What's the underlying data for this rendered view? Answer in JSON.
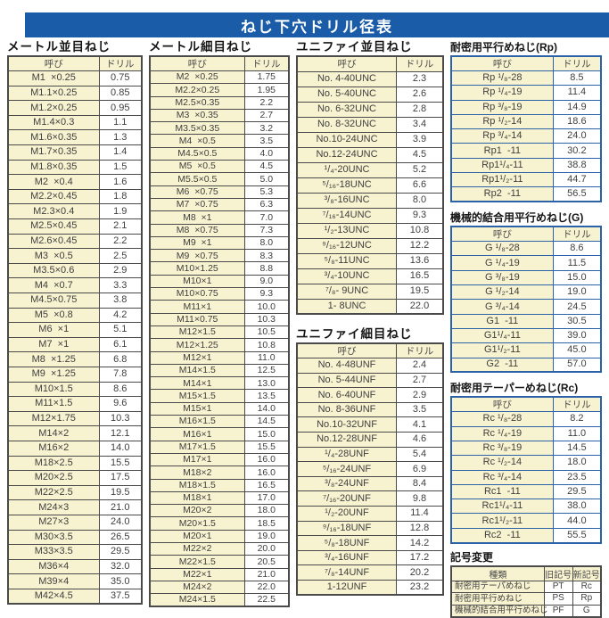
{
  "page_title": "ねじ下穴ドリル径表",
  "col_headers": {
    "name": "呼び",
    "drill": "ドリル"
  },
  "tables": {
    "metric_coarse": {
      "title": "メートル並目ねじ",
      "rows": [
        [
          "M1  ×0.25",
          "0.75"
        ],
        [
          "M1.1×0.25",
          "0.85"
        ],
        [
          "M1.2×0.25",
          "0.95"
        ],
        [
          "M1.4×0.3",
          "1.1"
        ],
        [
          "M1.6×0.35",
          "1.3"
        ],
        [
          "M1.7×0.35",
          "1.4"
        ],
        [
          "M1.8×0.35",
          "1.5"
        ],
        [
          "M2  ×0.4",
          "1.6"
        ],
        [
          "M2.2×0.45",
          "1.8"
        ],
        [
          "M2.3×0.4",
          "1.9"
        ],
        [
          "M2.5×0.45",
          "2.1"
        ],
        [
          "M2.6×0.45",
          "2.2"
        ],
        [
          "M3  ×0.5",
          "2.5"
        ],
        [
          "M3.5×0.6",
          "2.9"
        ],
        [
          "M4  ×0.7",
          "3.3"
        ],
        [
          "M4.5×0.75",
          "3.8"
        ],
        [
          "M5  ×0.8",
          "4.2"
        ],
        [
          "M6  ×1",
          "5.1"
        ],
        [
          "M7  ×1",
          "6.1"
        ],
        [
          "M8  ×1.25",
          "6.8"
        ],
        [
          "M9  ×1.25",
          "7.8"
        ],
        [
          "M10×1.5",
          "8.6"
        ],
        [
          "M11×1.5",
          "9.6"
        ],
        [
          "M12×1.75",
          "10.3"
        ],
        [
          "M14×2",
          "12.1"
        ],
        [
          "M16×2",
          "14.0"
        ],
        [
          "M18×2.5",
          "15.5"
        ],
        [
          "M20×2.5",
          "17.5"
        ],
        [
          "M22×2.5",
          "19.5"
        ],
        [
          "M24×3",
          "21.0"
        ],
        [
          "M27×3",
          "24.0"
        ],
        [
          "M30×3.5",
          "26.5"
        ],
        [
          "M33×3.5",
          "29.5"
        ],
        [
          "M36×4",
          "32.0"
        ],
        [
          "M39×4",
          "35.0"
        ],
        [
          "M42×4.5",
          "37.5"
        ]
      ]
    },
    "metric_fine": {
      "title": "メートル細目ねじ",
      "rows": [
        [
          "M2  ×0.25",
          "1.75"
        ],
        [
          "M2.2×0.25",
          "1.95"
        ],
        [
          "M2.5×0.35",
          "2.2"
        ],
        [
          "M3  ×0.35",
          "2.7"
        ],
        [
          "M3.5×0.35",
          "3.2"
        ],
        [
          "M4  ×0.5",
          "3.5"
        ],
        [
          "M4.5×0.5",
          "4.0"
        ],
        [
          "M5  ×0.5",
          "4.5"
        ],
        [
          "M5.5×0.5",
          "5.0"
        ],
        [
          "M6  ×0.75",
          "5.3"
        ],
        [
          "M7  ×0.75",
          "6.3"
        ],
        [
          "M8  ×1",
          "7.0"
        ],
        [
          "M8  ×0.75",
          "7.3"
        ],
        [
          "M9  ×1",
          "8.0"
        ],
        [
          "M9  ×0.75",
          "8.3"
        ],
        [
          "M10×1.25",
          "8.8"
        ],
        [
          "M10×1",
          "9.0"
        ],
        [
          "M10×0.75",
          "9.3"
        ],
        [
          "M11×1",
          "10.0"
        ],
        [
          "M11×0.75",
          "10.3"
        ],
        [
          "M12×1.5",
          "10.5"
        ],
        [
          "M12×1.25",
          "10.8"
        ],
        [
          "M12×1",
          "11.0"
        ],
        [
          "M14×1.5",
          "12.5"
        ],
        [
          "M14×1",
          "13.0"
        ],
        [
          "M15×1.5",
          "13.5"
        ],
        [
          "M15×1",
          "14.0"
        ],
        [
          "M16×1.5",
          "14.5"
        ],
        [
          "M16×1",
          "15.0"
        ],
        [
          "M17×1.5",
          "15.5"
        ],
        [
          "M17×1",
          "16.0"
        ],
        [
          "M18×2",
          "16.0"
        ],
        [
          "M18×1.5",
          "16.5"
        ],
        [
          "M18×1",
          "17.0"
        ],
        [
          "M20×2",
          "18.0"
        ],
        [
          "M20×1.5",
          "18.5"
        ],
        [
          "M20×1",
          "19.0"
        ],
        [
          "M22×2",
          "20.0"
        ],
        [
          "M22×1.5",
          "20.5"
        ],
        [
          "M22×1",
          "21.0"
        ],
        [
          "M24×2",
          "22.0"
        ],
        [
          "M24×1.5",
          "22.5"
        ]
      ]
    },
    "unified_coarse": {
      "title": "ユニファイ並目ねじ",
      "rows": [
        [
          "No. 4-40UNC",
          "2.3"
        ],
        [
          "No. 5-40UNC",
          "2.6"
        ],
        [
          "No. 6-32UNC",
          "2.8"
        ],
        [
          "No. 8-32UNC",
          "3.4"
        ],
        [
          "No.10-24UNC",
          "3.9"
        ],
        [
          "No.12-24UNC",
          "4.5"
        ],
        [
          "¹/₄-20UNC",
          "5.2"
        ],
        [
          "⁵/₁₆-18UNC",
          "6.6"
        ],
        [
          "³/₈-16UNC",
          "8.0"
        ],
        [
          "⁷/₁₆-14UNC",
          "9.3"
        ],
        [
          "¹/₂-13UNC",
          "10.8"
        ],
        [
          "⁹/₁₆-12UNC",
          "12.2"
        ],
        [
          "⁵/₈-11UNC",
          "13.6"
        ],
        [
          "³/₄-10UNC",
          "16.5"
        ],
        [
          "⁷/₈- 9UNC",
          "19.5"
        ],
        [
          "1- 8UNC",
          "22.0"
        ]
      ]
    },
    "unified_fine": {
      "title": "ユニファイ細目ねじ",
      "rows": [
        [
          "No. 4-48UNF",
          "2.4"
        ],
        [
          "No. 5-44UNF",
          "2.7"
        ],
        [
          "No. 6-40UNF",
          "2.9"
        ],
        [
          "No. 8-36UNF",
          "3.5"
        ],
        [
          "No.10-32UNF",
          "4.1"
        ],
        [
          "No.12-28UNF",
          "4.6"
        ],
        [
          "¹/₄-28UNF",
          "5.4"
        ],
        [
          "⁵/₁₆-24UNF",
          "6.9"
        ],
        [
          "³/₈-24UNF",
          "8.4"
        ],
        [
          "⁷/₁₆-20UNF",
          "9.8"
        ],
        [
          "¹/₂-20UNF",
          "11.4"
        ],
        [
          "⁹/₁₆-18UNF",
          "12.8"
        ],
        [
          "⁵/₈-18UNF",
          "14.2"
        ],
        [
          "³/₄-16UNF",
          "17.2"
        ],
        [
          "⁷/₈-14UNF",
          "20.2"
        ],
        [
          "1-12UNF",
          "23.2"
        ]
      ]
    },
    "rp": {
      "title": "耐密用平行めねじ(Rp)",
      "rows": [
        [
          "Rp ¹/₈-28",
          "8.5"
        ],
        [
          "Rp ¹/₄-19",
          "11.4"
        ],
        [
          "Rp ³/₈-19",
          "14.9"
        ],
        [
          "Rp ¹/₂-14",
          "18.6"
        ],
        [
          "Rp ³/₄-14",
          "24.0"
        ],
        [
          "Rp1  -11",
          "30.2"
        ],
        [
          "Rp1¹/₄-11",
          "38.8"
        ],
        [
          "Rp1¹/₂-11",
          "44.7"
        ],
        [
          "Rp2  -11",
          "56.5"
        ]
      ]
    },
    "g": {
      "title": "機械的結合用平行めねじ(G)",
      "rows": [
        [
          "G ¹/₈-28",
          "8.6"
        ],
        [
          "G ¹/₄-19",
          "11.5"
        ],
        [
          "G ³/₈-19",
          "15.0"
        ],
        [
          "G ¹/₂-14",
          "19.0"
        ],
        [
          "G ³/₄-14",
          "24.5"
        ],
        [
          "G1  -11",
          "30.5"
        ],
        [
          "G1¹/₄-11",
          "39.0"
        ],
        [
          "G1¹/₂-11",
          "45.0"
        ],
        [
          "G2  -11",
          "57.0"
        ]
      ]
    },
    "rc": {
      "title": "耐密用テーパーめねじ(Rc)",
      "rows": [
        [
          "Rc ¹/₈-28",
          "8.2"
        ],
        [
          "Rc ¹/₄-19",
          "11.0"
        ],
        [
          "Rc ³/₈-19",
          "14.5"
        ],
        [
          "Rc ¹/₂-14",
          "18.0"
        ],
        [
          "Rc ³/₄-14",
          "23.5"
        ],
        [
          "Rc1  -11",
          "29.5"
        ],
        [
          "Rc1¹/₄-11",
          "38.0"
        ],
        [
          "Rc1¹/₂-11",
          "44.0"
        ],
        [
          "Rc2  -11",
          "55.5"
        ]
      ]
    }
  },
  "symbol_change": {
    "title": "記号変更",
    "headers": [
      "種類",
      "旧記号",
      "新記号"
    ],
    "rows": [
      [
        "耐密用テーパめねじ",
        "PT",
        "Rc"
      ],
      [
        "耐密用平行めねじ",
        "PS",
        "Rp"
      ],
      [
        "機械的結合用平行めねじ",
        "PF",
        "G"
      ]
    ]
  },
  "colors": {
    "accent_blue": "#1a5ca8",
    "cell_cream": "#f7f2cf",
    "dark_border": "#4a4a4a"
  }
}
